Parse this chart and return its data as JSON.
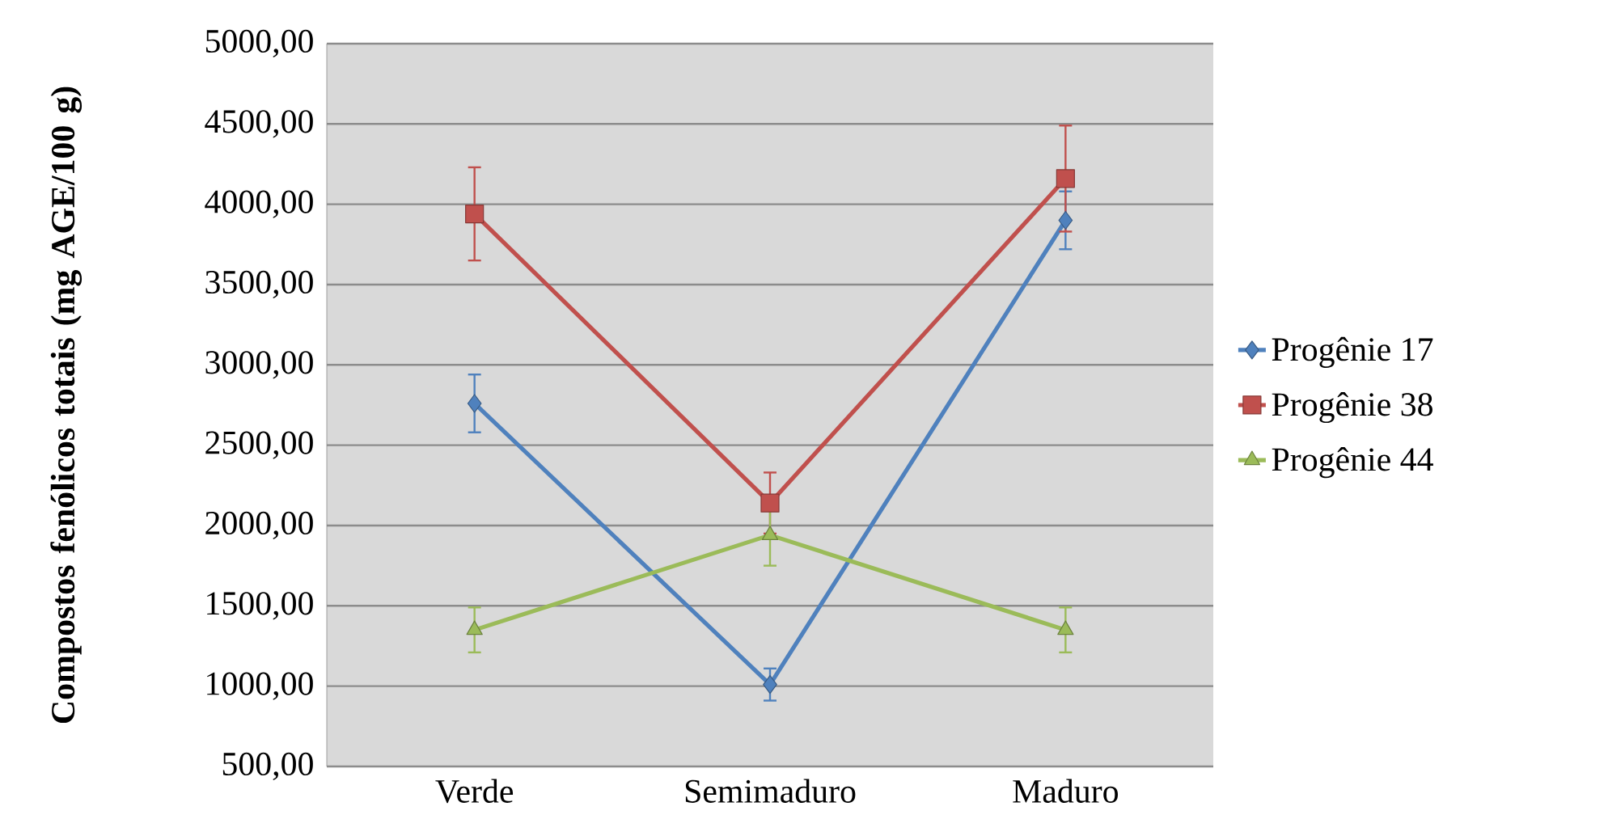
{
  "chart_data": {
    "type": "line",
    "ylabel": "Compostos fenólicos totais (mg AGE/100 g)",
    "categories": [
      "Verde",
      "Semimaduro",
      "Maduro"
    ],
    "series": [
      {
        "name": "Progênie 17",
        "color": "#4f81bd",
        "marker": "diamond",
        "values": [
          2760,
          1010,
          3900
        ],
        "errors": [
          180,
          100,
          180
        ]
      },
      {
        "name": "Progênie 38",
        "color": "#c0504d",
        "marker": "square",
        "values": [
          3940,
          2140,
          4160
        ],
        "errors": [
          290,
          190,
          330
        ]
      },
      {
        "name": "Progênie 44",
        "color": "#9bbb59",
        "marker": "triangle",
        "values": [
          1350,
          1940,
          1350
        ],
        "errors": [
          140,
          190,
          140
        ]
      }
    ],
    "ylim": [
      500,
      5000
    ],
    "yticks": [
      {
        "value": 500,
        "label": "500,00"
      },
      {
        "value": 1000,
        "label": "1000,00"
      },
      {
        "value": 1500,
        "label": "1500,00"
      },
      {
        "value": 2000,
        "label": "2000,00"
      },
      {
        "value": 2500,
        "label": "2500,00"
      },
      {
        "value": 3000,
        "label": "3000,00"
      },
      {
        "value": 3500,
        "label": "3500,00"
      },
      {
        "value": 4000,
        "label": "4000,00"
      },
      {
        "value": 4500,
        "label": "4500,00"
      },
      {
        "value": 5000,
        "label": "5000,00"
      }
    ],
    "grid": "y",
    "legend": "right"
  }
}
